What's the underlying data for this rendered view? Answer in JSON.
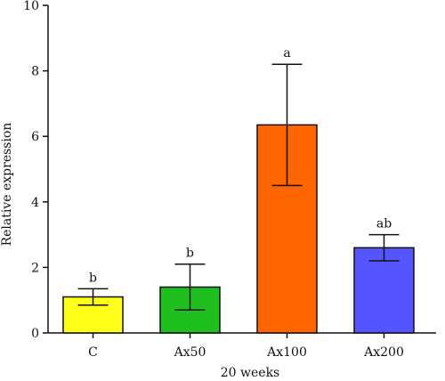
{
  "chart_data": {
    "type": "bar",
    "categories": [
      "C",
      "Ax50",
      "Ax100",
      "Ax200"
    ],
    "values": [
      1.1,
      1.4,
      6.35,
      2.6
    ],
    "error_upper": [
      0.25,
      0.7,
      1.85,
      0.4
    ],
    "error_lower": [
      0.25,
      0.7,
      1.85,
      0.4
    ],
    "significance_labels": [
      "b",
      "b",
      "a",
      "ab"
    ],
    "bar_colors": [
      "#ffff1a",
      "#1fbf1f",
      "#ff6600",
      "#5555ff"
    ],
    "title": "",
    "xlabel": "20 weeks",
    "ylabel": "Relative expression",
    "ylim": [
      0,
      10
    ],
    "yticks": [
      "0",
      "2",
      "4",
      "6",
      "8",
      "10"
    ],
    "grid": false,
    "legend": "none"
  }
}
